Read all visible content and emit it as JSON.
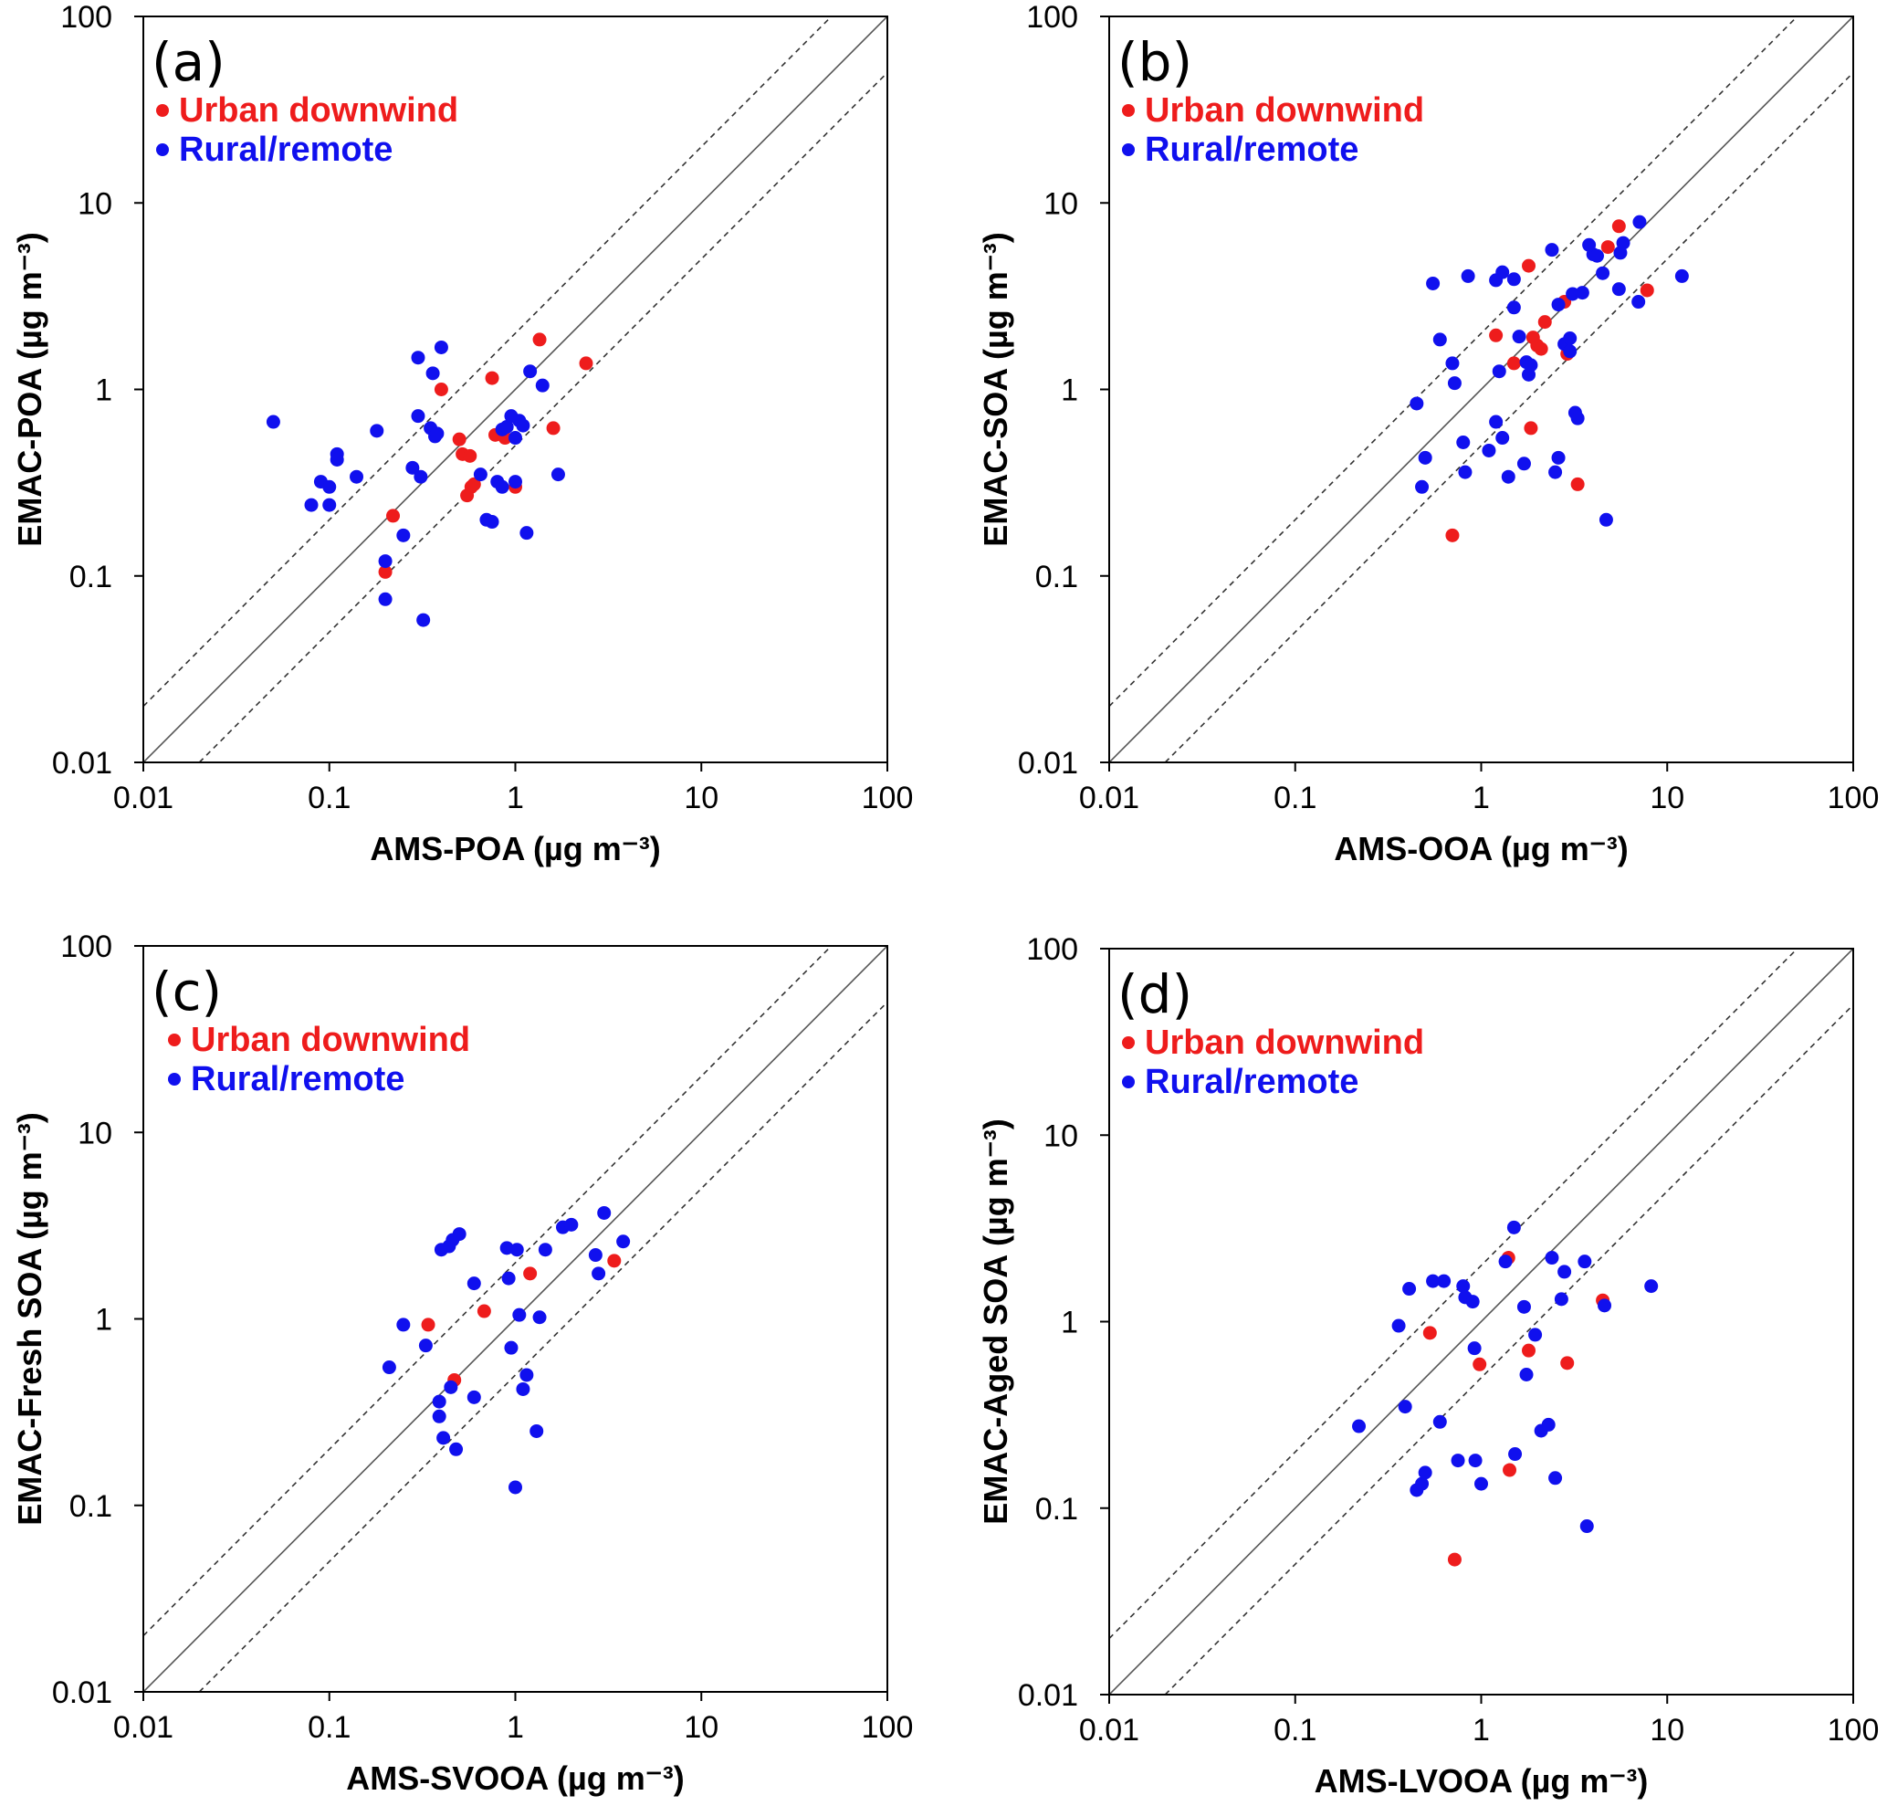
{
  "figure": {
    "series_names": [
      "Urban downwind",
      "Rural/remote"
    ],
    "colors": {
      "urban": "#ee1c1c",
      "rural": "#1010ee",
      "axis": "#000000"
    },
    "tick_labels": [
      "0.01",
      "0.1",
      "1",
      "10",
      "100"
    ]
  },
  "chart_data": [
    {
      "type": "scatter",
      "panel": "(a)",
      "xlabel": "AMS-POA (µg m⁻³)",
      "ylabel": "EMAC-POA (µg m⁻³)",
      "xscale": "log",
      "yscale": "log",
      "xlim": [
        0.01,
        100
      ],
      "ylim": [
        0.01,
        100
      ],
      "reference_lines": {
        "one_to_one": "solid",
        "factor_of_two": "dashed"
      },
      "legend": [
        "Urban downwind",
        "Rural/remote"
      ],
      "series": [
        {
          "name": "Urban downwind",
          "color": "#ee1c1c",
          "x": [
            0.2,
            0.22,
            0.4,
            0.5,
            0.52,
            0.55,
            0.57,
            0.58,
            0.6,
            0.75,
            0.78,
            0.88,
            1.0,
            1.35,
            1.6,
            2.4
          ],
          "y": [
            0.105,
            0.21,
            1.0,
            0.54,
            0.45,
            0.27,
            0.44,
            0.3,
            0.31,
            1.15,
            0.57,
            0.55,
            0.3,
            1.85,
            0.62,
            1.38
          ]
        },
        {
          "name": "Rural/remote",
          "color": "#1010ee",
          "x": [
            0.05,
            0.08,
            0.09,
            0.1,
            0.1,
            0.11,
            0.11,
            0.14,
            0.18,
            0.2,
            0.2,
            0.25,
            0.28,
            0.3,
            0.3,
            0.31,
            0.32,
            0.35,
            0.36,
            0.37,
            0.38,
            0.4,
            0.65,
            0.7,
            0.75,
            0.8,
            0.85,
            0.85,
            0.9,
            0.95,
            1.0,
            1.0,
            1.05,
            1.1,
            1.2,
            1.15,
            1.4,
            1.7
          ],
          "y": [
            0.67,
            0.24,
            0.32,
            0.3,
            0.24,
            0.45,
            0.42,
            0.34,
            0.6,
            0.12,
            0.075,
            0.165,
            0.38,
            1.48,
            0.72,
            0.34,
            0.058,
            0.62,
            1.22,
            0.56,
            0.58,
            1.68,
            0.35,
            0.2,
            0.195,
            0.32,
            0.3,
            0.61,
            0.63,
            0.72,
            0.55,
            0.32,
            0.68,
            0.64,
            1.25,
            0.17,
            1.05,
            0.35
          ]
        }
      ]
    },
    {
      "type": "scatter",
      "panel": "(b)",
      "xlabel": "AMS-OOA (µg m⁻³)",
      "ylabel": "EMAC-SOA (µg m⁻³)",
      "xscale": "log",
      "yscale": "log",
      "xlim": [
        0.01,
        100
      ],
      "ylim": [
        0.01,
        100
      ],
      "reference_lines": {
        "one_to_one": "solid",
        "factor_of_two": "dashed"
      },
      "legend": [
        "Urban downwind",
        "Rural/remote"
      ],
      "series": [
        {
          "name": "Urban downwind",
          "color": "#ee1c1c",
          "x": [
            0.7,
            1.2,
            1.5,
            1.8,
            1.85,
            1.9,
            2.0,
            2.1,
            2.2,
            2.8,
            2.9,
            3.3,
            4.8,
            5.5,
            7.8
          ],
          "y": [
            0.165,
            1.95,
            1.38,
            4.6,
            0.62,
            1.9,
            1.72,
            1.65,
            2.3,
            2.95,
            1.55,
            0.31,
            5.8,
            7.5,
            3.4
          ]
        },
        {
          "name": "Rural/remote",
          "color": "#1010ee",
          "x": [
            0.45,
            0.48,
            0.5,
            0.55,
            0.6,
            0.7,
            0.72,
            0.8,
            0.82,
            0.85,
            1.1,
            1.2,
            1.2,
            1.25,
            1.3,
            1.3,
            1.4,
            1.5,
            1.5,
            1.6,
            1.7,
            1.75,
            1.8,
            1.85,
            2.4,
            2.5,
            2.6,
            2.6,
            2.8,
            3.0,
            3.0,
            3.1,
            3.2,
            3.3,
            3.5,
            3.8,
            4.0,
            4.2,
            4.5,
            5.5,
            5.8,
            7.0,
            7.1,
            12.0,
            4.7,
            5.6
          ],
          "y": [
            0.84,
            0.3,
            0.43,
            3.7,
            1.85,
            1.38,
            1.08,
            0.52,
            0.36,
            4.05,
            0.47,
            0.67,
            3.85,
            1.25,
            0.55,
            4.25,
            0.34,
            2.75,
            3.9,
            1.92,
            0.4,
            1.4,
            1.2,
            1.35,
            5.6,
            0.36,
            2.85,
            0.43,
            1.75,
            1.6,
            1.88,
            3.25,
            0.75,
            0.7,
            3.3,
            5.95,
            5.3,
            5.2,
            4.2,
            3.45,
            6.1,
            2.95,
            7.9,
            4.05,
            0.2,
            5.4
          ]
        }
      ]
    },
    {
      "type": "scatter",
      "panel": "(c)",
      "xlabel": "AMS-SVOOA (µg m⁻³)",
      "ylabel": "EMAC-Fresh SOA (µg m⁻³)",
      "xscale": "log",
      "yscale": "log",
      "xlim": [
        0.01,
        100
      ],
      "ylim": [
        0.01,
        100
      ],
      "reference_lines": {
        "one_to_one": "solid",
        "factor_of_two": "dashed"
      },
      "legend": [
        "Urban downwind",
        "Rural/remote"
      ],
      "series": [
        {
          "name": "Urban downwind",
          "color": "#ee1c1c",
          "x": [
            0.34,
            0.47,
            0.68,
            1.2,
            3.4
          ],
          "y": [
            0.93,
            0.47,
            1.1,
            1.75,
            2.05
          ]
        },
        {
          "name": "Rural/remote",
          "color": "#1010ee",
          "x": [
            0.21,
            0.25,
            0.33,
            0.39,
            0.39,
            0.4,
            0.41,
            0.44,
            0.45,
            0.46,
            0.48,
            0.5,
            0.6,
            0.6,
            0.9,
            0.92,
            0.95,
            1.0,
            1.02,
            1.05,
            1.1,
            1.15,
            1.3,
            1.35,
            1.45,
            1.8,
            2.0,
            2.7,
            2.8,
            3.0,
            3.8
          ],
          "y": [
            0.55,
            0.93,
            0.72,
            0.36,
            0.3,
            2.35,
            0.23,
            2.45,
            0.43,
            2.65,
            0.2,
            2.85,
            0.38,
            1.55,
            2.4,
            1.65,
            0.7,
            0.125,
            2.35,
            1.05,
            0.42,
            0.5,
            0.25,
            1.02,
            2.35,
            3.1,
            3.2,
            2.2,
            1.75,
            3.7,
            2.6
          ]
        }
      ]
    },
    {
      "type": "scatter",
      "panel": "(d)",
      "xlabel": "AMS-LVOOA (µg m⁻³)",
      "ylabel": "EMAC-Aged SOA (µg m⁻³)",
      "xscale": "log",
      "yscale": "log",
      "xlim": [
        0.01,
        100
      ],
      "ylim": [
        0.01,
        100
      ],
      "reference_lines": {
        "one_to_one": "solid",
        "factor_of_two": "dashed"
      },
      "legend": [
        "Urban downwind",
        "Rural/remote"
      ],
      "series": [
        {
          "name": "Urban downwind",
          "color": "#ee1c1c",
          "x": [
            0.53,
            0.72,
            0.98,
            1.4,
            1.42,
            1.8,
            2.9,
            4.5
          ],
          "y": [
            0.87,
            0.053,
            0.59,
            2.2,
            0.16,
            0.7,
            0.6,
            1.3
          ]
        },
        {
          "name": "Rural/remote",
          "color": "#1010ee",
          "x": [
            0.22,
            0.36,
            0.39,
            0.41,
            0.45,
            0.48,
            0.5,
            0.55,
            0.6,
            0.63,
            0.75,
            0.8,
            0.82,
            0.9,
            0.92,
            0.93,
            1.0,
            1.35,
            1.5,
            1.52,
            1.7,
            1.75,
            1.95,
            2.1,
            2.3,
            2.4,
            2.5,
            2.7,
            2.8,
            3.6,
            3.7,
            4.6,
            8.2
          ],
          "y": [
            0.275,
            0.95,
            0.35,
            1.5,
            0.125,
            0.135,
            0.155,
            1.65,
            0.29,
            1.65,
            0.18,
            1.55,
            1.35,
            1.28,
            0.72,
            0.18,
            0.135,
            2.1,
            3.2,
            0.195,
            1.2,
            0.52,
            0.85,
            0.26,
            0.28,
            2.2,
            0.145,
            1.32,
            1.85,
            2.1,
            0.08,
            1.22,
            1.55
          ]
        }
      ]
    }
  ]
}
